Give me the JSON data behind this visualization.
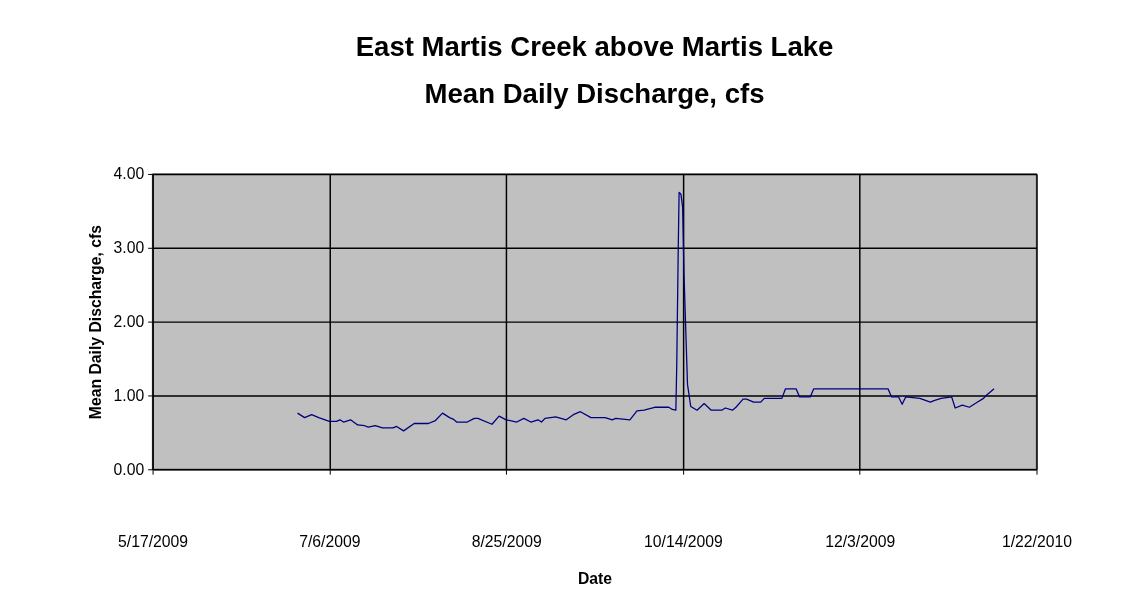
{
  "chart_data": {
    "type": "line",
    "title": "East Martis Creek above Martis Lake\nMean Daily Discharge, cfs",
    "xlabel": "Date",
    "ylabel": "Mean Daily Discharge, cfs",
    "x": [
      "2009-06-27",
      "2009-06-29",
      "2009-07-01",
      "2009-07-03",
      "2009-07-06",
      "2009-07-08",
      "2009-07-09",
      "2009-07-10",
      "2009-07-12",
      "2009-07-14",
      "2009-07-16",
      "2009-07-17",
      "2009-07-19",
      "2009-07-21",
      "2009-07-24",
      "2009-07-25",
      "2009-07-27",
      "2009-07-30",
      "2009-08-03",
      "2009-08-05",
      "2009-08-07",
      "2009-08-09",
      "2009-08-10",
      "2009-08-11",
      "2009-08-14",
      "2009-08-16",
      "2009-08-17",
      "2009-08-21",
      "2009-08-23",
      "2009-08-25",
      "2009-08-28",
      "2009-08-30",
      "2009-09-01",
      "2009-09-03",
      "2009-09-04",
      "2009-09-05",
      "2009-09-08",
      "2009-09-11",
      "2009-09-13",
      "2009-09-15",
      "2009-09-18",
      "2009-09-22",
      "2009-09-24",
      "2009-09-25",
      "2009-09-29",
      "2009-10-01",
      "2009-10-03",
      "2009-10-06",
      "2009-10-10",
      "2009-10-11",
      "2009-10-12T00:00",
      "2009-10-12T06:00",
      "2009-10-12T16:00",
      "2009-10-12T22:00",
      "2009-10-13T10:00",
      "2009-10-13T22:00",
      "2009-10-14T07:00",
      "2009-10-14T19:00",
      "2009-10-15T07:00",
      "2009-10-16T05:00",
      "2009-10-18",
      "2009-10-20",
      "2009-10-22",
      "2009-10-25",
      "2009-10-26",
      "2009-10-28",
      "2009-10-29",
      "2009-10-31",
      "2009-11-01",
      "2009-11-03",
      "2009-11-05",
      "2009-11-06",
      "2009-11-11",
      "2009-11-12",
      "2009-11-15",
      "2009-11-16",
      "2009-11-19",
      "2009-11-20",
      "2009-12-11",
      "2009-12-12",
      "2009-12-14",
      "2009-12-15",
      "2009-12-16",
      "2009-12-20",
      "2009-12-23",
      "2009-12-24",
      "2009-12-26",
      "2009-12-29",
      "2009-12-30",
      "2010-01-01",
      "2010-01-03",
      "2010-01-05",
      "2010-01-07",
      "2010-01-08",
      "2010-01-10"
    ],
    "series": [
      {
        "color": "#000080",
        "values": [
          0.76,
          0.7,
          0.74,
          0.7,
          0.65,
          0.65,
          0.67,
          0.64,
          0.67,
          0.6,
          0.59,
          0.57,
          0.59,
          0.56,
          0.56,
          0.58,
          0.52,
          0.62,
          0.62,
          0.66,
          0.76,
          0.7,
          0.68,
          0.64,
          0.64,
          0.69,
          0.69,
          0.61,
          0.72,
          0.67,
          0.64,
          0.69,
          0.64,
          0.67,
          0.64,
          0.69,
          0.71,
          0.67,
          0.74,
          0.78,
          0.7,
          0.7,
          0.67,
          0.69,
          0.67,
          0.79,
          0.8,
          0.84,
          0.84,
          0.81,
          0.8,
          1.41,
          2.97,
          3.75,
          3.73,
          3.55,
          2.66,
          1.9,
          1.15,
          0.85,
          0.8,
          0.89,
          0.8,
          0.8,
          0.83,
          0.8,
          0.84,
          0.95,
          0.95,
          0.91,
          0.91,
          0.96,
          0.96,
          1.09,
          1.09,
          0.98,
          0.98,
          1.09,
          1.09,
          0.98,
          0.98,
          0.88,
          0.98,
          0.96,
          0.91,
          0.93,
          0.96,
          0.98,
          0.83,
          0.87,
          0.84,
          0.9,
          0.96,
          1.01,
          1.09
        ]
      }
    ],
    "xlim": [
      "2009-05-17",
      "2010-01-22"
    ],
    "xticks": [
      {
        "value": "2009-05-17",
        "label": "5/17/2009"
      },
      {
        "value": "2009-07-06",
        "label": "7/6/2009"
      },
      {
        "value": "2009-08-25",
        "label": "8/25/2009"
      },
      {
        "value": "2009-10-14",
        "label": "10/14/2009"
      },
      {
        "value": "2009-12-03",
        "label": "12/3/2009"
      },
      {
        "value": "2010-01-22",
        "label": "1/22/2010"
      }
    ],
    "ylim": [
      0,
      4
    ],
    "yticks": [
      {
        "value": 0,
        "label": "0.00"
      },
      {
        "value": 1,
        "label": "1.00"
      },
      {
        "value": 2,
        "label": "2.00"
      },
      {
        "value": 3,
        "label": "3.00"
      },
      {
        "value": 4,
        "label": "4.00"
      }
    ],
    "grid": true,
    "marker": "none",
    "line_style": "solid"
  }
}
